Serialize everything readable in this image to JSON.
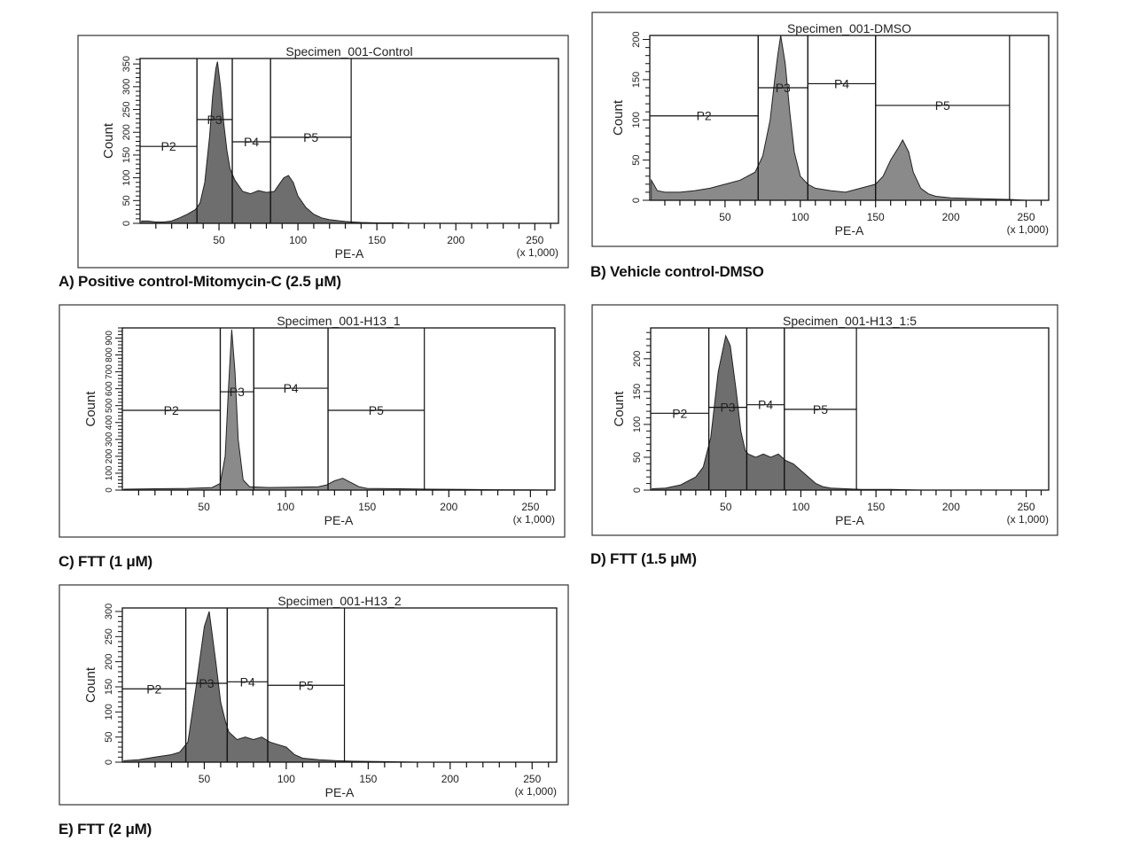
{
  "chart_data": [
    {
      "type": "area",
      "title": "Specimen_001-Control",
      "caption": "A) Positive control-Mitomycin-C (2.5 μM)",
      "xlabel": "PE-A",
      "xunit": "(x 1,000)",
      "ylabel": "Count",
      "xlim": [
        0,
        265
      ],
      "ylim": [
        0,
        362
      ],
      "xticks": [
        50,
        100,
        150,
        200,
        250
      ],
      "yticks": [
        0,
        50,
        100,
        150,
        200,
        250,
        300,
        350
      ],
      "gates": [
        {
          "name": "P2",
          "x": [
            0,
            36
          ],
          "y": 169
        },
        {
          "name": "P3",
          "x": [
            36,
            58.4
          ],
          "y": 228
        },
        {
          "name": "P4",
          "x": [
            58.4,
            82.6
          ],
          "y": 179
        },
        {
          "name": "P5",
          "x": [
            82.6,
            133.7
          ],
          "y": 189
        }
      ],
      "histogram": [
        [
          1,
          5
        ],
        [
          5,
          5
        ],
        [
          10,
          3
        ],
        [
          15,
          3
        ],
        [
          20,
          5
        ],
        [
          25,
          12
        ],
        [
          30,
          20
        ],
        [
          35,
          30
        ],
        [
          38,
          45
        ],
        [
          41,
          90
        ],
        [
          44,
          190
        ],
        [
          46,
          280
        ],
        [
          48,
          340
        ],
        [
          49,
          355
        ],
        [
          51,
          300
        ],
        [
          53,
          220
        ],
        [
          55,
          160
        ],
        [
          57,
          120
        ],
        [
          60,
          95
        ],
        [
          65,
          70
        ],
        [
          70,
          65
        ],
        [
          75,
          72
        ],
        [
          80,
          68
        ],
        [
          85,
          70
        ],
        [
          88,
          85
        ],
        [
          91,
          100
        ],
        [
          94,
          105
        ],
        [
          97,
          90
        ],
        [
          100,
          60
        ],
        [
          105,
          35
        ],
        [
          110,
          20
        ],
        [
          115,
          12
        ],
        [
          120,
          8
        ],
        [
          125,
          6
        ],
        [
          130,
          4
        ],
        [
          135,
          3
        ],
        [
          140,
          2
        ],
        [
          150,
          1
        ],
        [
          165,
          1
        ],
        [
          170,
          0
        ],
        [
          265,
          0
        ]
      ]
    },
    {
      "type": "area",
      "title": "Specimen_001-DMSO",
      "caption": "B) Vehicle control-DMSO",
      "xlabel": "PE-A",
      "xunit": "(x 1,000)",
      "ylabel": "Count",
      "xlim": [
        0,
        265
      ],
      "ylim": [
        0,
        205
      ],
      "xticks": [
        50,
        100,
        150,
        200,
        250
      ],
      "yticks": [
        0,
        50,
        100,
        150,
        200
      ],
      "gates": [
        {
          "name": "P2",
          "x": [
            0,
            72
          ],
          "y": 105
        },
        {
          "name": "P3",
          "x": [
            72,
            105
          ],
          "y": 140
        },
        {
          "name": "P4",
          "x": [
            105,
            150
          ],
          "y": 145
        },
        {
          "name": "P5",
          "x": [
            150,
            239
          ],
          "y": 118
        }
      ],
      "histogram": [
        [
          1,
          25
        ],
        [
          5,
          12
        ],
        [
          10,
          10
        ],
        [
          20,
          10
        ],
        [
          30,
          12
        ],
        [
          40,
          15
        ],
        [
          50,
          20
        ],
        [
          60,
          25
        ],
        [
          70,
          35
        ],
        [
          75,
          55
        ],
        [
          80,
          100
        ],
        [
          83,
          150
        ],
        [
          85,
          180
        ],
        [
          87,
          205
        ],
        [
          90,
          170
        ],
        [
          93,
          110
        ],
        [
          96,
          60
        ],
        [
          100,
          30
        ],
        [
          105,
          20
        ],
        [
          110,
          15
        ],
        [
          120,
          12
        ],
        [
          130,
          10
        ],
        [
          140,
          15
        ],
        [
          150,
          20
        ],
        [
          155,
          30
        ],
        [
          160,
          50
        ],
        [
          165,
          65
        ],
        [
          168,
          75
        ],
        [
          172,
          60
        ],
        [
          175,
          35
        ],
        [
          180,
          15
        ],
        [
          185,
          8
        ],
        [
          190,
          5
        ],
        [
          200,
          3
        ],
        [
          220,
          2
        ],
        [
          240,
          1
        ],
        [
          250,
          0
        ],
        [
          265,
          0
        ]
      ]
    },
    {
      "type": "area",
      "title": "Specimen_001-H13_1",
      "caption": "C) FTT (1 μM)",
      "xlabel": "PE-A",
      "xunit": "(x 1,000)",
      "ylabel": "Count",
      "xlim": [
        0,
        265
      ],
      "ylim": [
        0,
        960
      ],
      "xticks": [
        50,
        100,
        150,
        200,
        250
      ],
      "yticks": [
        0,
        100,
        200,
        300,
        400,
        500,
        600,
        700,
        800,
        900
      ],
      "gates": [
        {
          "name": "P2",
          "x": [
            0,
            60
          ],
          "y": 472
        },
        {
          "name": "P3",
          "x": [
            60,
            80.5
          ],
          "y": 582
        },
        {
          "name": "P4",
          "x": [
            80.5,
            126
          ],
          "y": 603
        },
        {
          "name": "P5",
          "x": [
            126,
            185
          ],
          "y": 472
        }
      ],
      "histogram": [
        [
          1,
          5
        ],
        [
          20,
          8
        ],
        [
          40,
          10
        ],
        [
          55,
          15
        ],
        [
          60,
          40
        ],
        [
          63,
          200
        ],
        [
          65,
          600
        ],
        [
          67,
          950
        ],
        [
          69,
          700
        ],
        [
          71,
          300
        ],
        [
          74,
          60
        ],
        [
          78,
          20
        ],
        [
          90,
          15
        ],
        [
          110,
          18
        ],
        [
          120,
          20
        ],
        [
          125,
          30
        ],
        [
          130,
          55
        ],
        [
          135,
          70
        ],
        [
          140,
          45
        ],
        [
          145,
          20
        ],
        [
          150,
          10
        ],
        [
          170,
          8
        ],
        [
          190,
          5
        ],
        [
          210,
          4
        ],
        [
          230,
          2
        ],
        [
          250,
          1
        ],
        [
          265,
          0
        ]
      ]
    },
    {
      "type": "area",
      "title": "Specimen_001-H13_1:5",
      "caption": "D) FTT (1.5 μM)",
      "xlabel": "PE-A",
      "xunit": "(x 1,000)",
      "ylabel": "Count",
      "xlim": [
        0,
        265
      ],
      "ylim": [
        0,
        247
      ],
      "xticks": [
        50,
        100,
        150,
        200,
        250
      ],
      "yticks": [
        0,
        50,
        100,
        150,
        200
      ],
      "gates": [
        {
          "name": "P2",
          "x": [
            0,
            38.7
          ],
          "y": 117
        },
        {
          "name": "P3",
          "x": [
            38.7,
            64
          ],
          "y": 126
        },
        {
          "name": "P4",
          "x": [
            64,
            89
          ],
          "y": 130
        },
        {
          "name": "P5",
          "x": [
            89,
            137
          ],
          "y": 123
        }
      ],
      "histogram": [
        [
          1,
          2
        ],
        [
          10,
          3
        ],
        [
          20,
          8
        ],
        [
          30,
          20
        ],
        [
          35,
          35
        ],
        [
          40,
          80
        ],
        [
          45,
          180
        ],
        [
          50,
          235
        ],
        [
          53,
          220
        ],
        [
          57,
          150
        ],
        [
          60,
          90
        ],
        [
          63,
          60
        ],
        [
          65,
          55
        ],
        [
          70,
          50
        ],
        [
          75,
          55
        ],
        [
          80,
          50
        ],
        [
          85,
          55
        ],
        [
          90,
          45
        ],
        [
          95,
          40
        ],
        [
          100,
          30
        ],
        [
          105,
          20
        ],
        [
          110,
          10
        ],
        [
          115,
          5
        ],
        [
          120,
          3
        ],
        [
          130,
          2
        ],
        [
          140,
          1
        ],
        [
          160,
          1
        ],
        [
          180,
          0
        ],
        [
          265,
          0
        ]
      ]
    },
    {
      "type": "area",
      "title": "Specimen_001-H13_2",
      "caption": "E) FTT (2 μM)",
      "xlabel": "PE-A",
      "xunit": "(x 1,000)",
      "ylabel": "Count",
      "xlim": [
        0,
        265
      ],
      "ylim": [
        0,
        307
      ],
      "xticks": [
        50,
        100,
        150,
        200,
        250
      ],
      "yticks": [
        0,
        50,
        100,
        150,
        200,
        250,
        300
      ],
      "gates": [
        {
          "name": "P2",
          "x": [
            0,
            38.7
          ],
          "y": 146
        },
        {
          "name": "P3",
          "x": [
            38.7,
            64
          ],
          "y": 157
        },
        {
          "name": "P4",
          "x": [
            64,
            88.7
          ],
          "y": 160
        },
        {
          "name": "P5",
          "x": [
            88.7,
            135.5
          ],
          "y": 153
        }
      ],
      "histogram": [
        [
          1,
          3
        ],
        [
          10,
          5
        ],
        [
          20,
          10
        ],
        [
          30,
          15
        ],
        [
          35,
          20
        ],
        [
          40,
          40
        ],
        [
          45,
          150
        ],
        [
          50,
          270
        ],
        [
          53,
          300
        ],
        [
          57,
          200
        ],
        [
          60,
          120
        ],
        [
          63,
          80
        ],
        [
          65,
          60
        ],
        [
          70,
          45
        ],
        [
          75,
          50
        ],
        [
          80,
          45
        ],
        [
          85,
          50
        ],
        [
          90,
          40
        ],
        [
          95,
          35
        ],
        [
          100,
          30
        ],
        [
          105,
          15
        ],
        [
          110,
          8
        ],
        [
          120,
          5
        ],
        [
          130,
          3
        ],
        [
          140,
          2
        ],
        [
          160,
          1
        ],
        [
          180,
          0
        ],
        [
          265,
          0
        ]
      ]
    }
  ]
}
